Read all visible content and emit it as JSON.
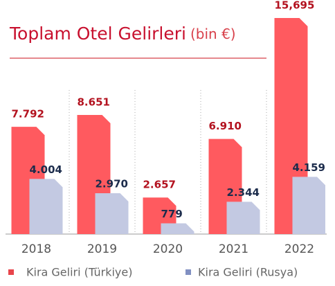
{
  "chart_data": {
    "type": "bar",
    "title": "Toplam Otel Gelirleri",
    "subtitle": "(bin €)",
    "categories": [
      "2018",
      "2019",
      "2020",
      "2021",
      "2022"
    ],
    "series": [
      {
        "name": "Kira Geliri (Türkiye)",
        "color": "#ff5a5f",
        "values": [
          7792,
          8651,
          2657,
          6910,
          15695
        ],
        "value_labels": [
          "7.792",
          "8.651",
          "2.657",
          "6.910",
          "15,695"
        ]
      },
      {
        "name": "Kira Geliri (Rusya)",
        "color": "#c3c9e2",
        "values": [
          4004,
          2970,
          779,
          2344,
          4159
        ],
        "value_labels": [
          "4.004",
          "2.970",
          "779",
          "2.344",
          "4.159"
        ]
      }
    ],
    "ylim": [
      0,
      16000
    ]
  }
}
